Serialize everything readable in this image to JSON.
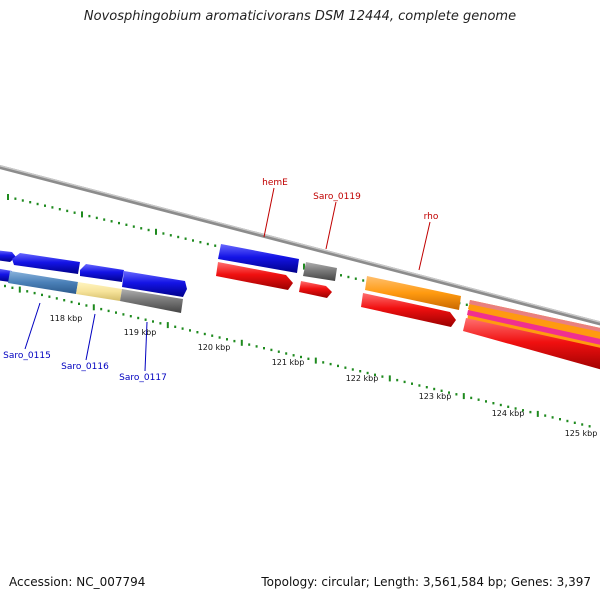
{
  "title": "Novosphingobium aromaticivorans DSM 12444, complete genome",
  "footer": {
    "accession": "Accession: NC_007794",
    "topology": "Topology: circular; Length: 3,561,584 bp; Genes: 3,397"
  },
  "colors": {
    "forward_cds": "#1010e0",
    "reverse_cds": "#ee1010",
    "gray_cds": "#7a7a7a",
    "orange_feature": "#ff9a10",
    "tick": "#1e8a1e",
    "label_top": "#c00000",
    "label_bottom": "#0000c0"
  },
  "scale": {
    "tick_labels": [
      "118 kbp",
      "119 kbp",
      "120 kbp",
      "121 kbp",
      "122 kbp",
      "123 kbp",
      "124 kbp",
      "125 kbp"
    ]
  },
  "gene_labels": {
    "top": [
      "hemE",
      "Saro_0119",
      "rho"
    ],
    "bottom": [
      "Saro_0115",
      "Saro_0116",
      "Saro_0117"
    ]
  }
}
